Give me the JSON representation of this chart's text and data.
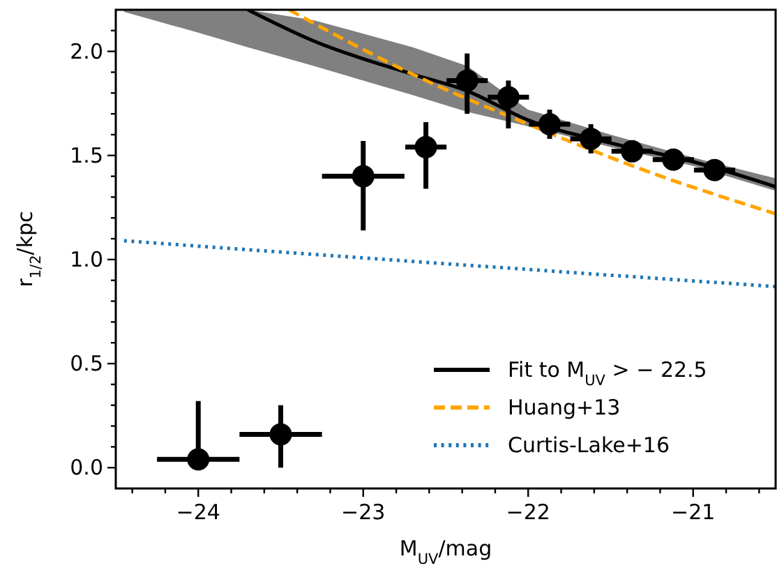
{
  "chart_data": {
    "type": "scatter",
    "xlabel": "M$_{UV}$/mag",
    "ylabel": "r$_{1/2}$/kpc",
    "xlim": [
      -24.5,
      -20.5
    ],
    "ylim": [
      -0.1,
      2.2
    ],
    "xticks": [
      {
        "value": -24.4,
        "label": null
      },
      {
        "value": -24.2,
        "label": null
      },
      {
        "value": -24,
        "label": "−24"
      },
      {
        "value": -23.8,
        "label": null
      },
      {
        "value": -23.6,
        "label": null
      },
      {
        "value": -23.4,
        "label": null
      },
      {
        "value": -23.2,
        "label": null
      },
      {
        "value": -23,
        "label": "−23"
      },
      {
        "value": -22.8,
        "label": null
      },
      {
        "value": -22.6,
        "label": null
      },
      {
        "value": -22.4,
        "label": null
      },
      {
        "value": -22.2,
        "label": null
      },
      {
        "value": -22,
        "label": "−22"
      },
      {
        "value": -21.8,
        "label": null
      },
      {
        "value": -21.6,
        "label": null
      },
      {
        "value": -21.4,
        "label": null
      },
      {
        "value": -21.2,
        "label": null
      },
      {
        "value": -21,
        "label": "−21"
      },
      {
        "value": -20.8,
        "label": null
      },
      {
        "value": -20.6,
        "label": null
      }
    ],
    "yticks": [
      {
        "value": 0,
        "label": "0.0"
      },
      {
        "value": 0.1,
        "label": null
      },
      {
        "value": 0.2,
        "label": null
      },
      {
        "value": 0.3,
        "label": null
      },
      {
        "value": 0.4,
        "label": null
      },
      {
        "value": 0.5,
        "label": "0.5"
      },
      {
        "value": 0.6,
        "label": null
      },
      {
        "value": 0.7,
        "label": null
      },
      {
        "value": 0.8,
        "label": null
      },
      {
        "value": 0.9,
        "label": null
      },
      {
        "value": 1,
        "label": "1.0"
      },
      {
        "value": 1.1,
        "label": null
      },
      {
        "value": 1.2,
        "label": null
      },
      {
        "value": 1.3,
        "label": null
      },
      {
        "value": 1.4,
        "label": null
      },
      {
        "value": 1.5,
        "label": "1.5"
      },
      {
        "value": 1.6,
        "label": null
      },
      {
        "value": 1.7,
        "label": null
      },
      {
        "value": 1.8,
        "label": null
      },
      {
        "value": 1.9,
        "label": null
      },
      {
        "value": 2,
        "label": "2.0"
      },
      {
        "value": 2.1,
        "label": null
      }
    ],
    "grid": false,
    "legend": "bottom right",
    "series": [
      {
        "type": "line",
        "name": "Fit to M$_{UV}$ > − 22.5",
        "color": "#000000",
        "line_style": "solid",
        "marker": "none",
        "x": [
          -24.45,
          -24.0,
          -23.7,
          -23.3,
          -22.7,
          -22.37,
          -22.0,
          -21.5,
          -21.0,
          -20.5
        ],
        "values": [
          null,
          null,
          2.2,
          2.05,
          1.89,
          1.81,
          1.67,
          1.56,
          1.47,
          1.35
        ],
        "lower": [
          2.19,
          2.09,
          2.02,
          1.93,
          1.79,
          1.71,
          1.64,
          1.54,
          1.45,
          1.33
        ],
        "upper": [
          2.2,
          2.2,
          2.2,
          2.15,
          2.02,
          1.93,
          1.72,
          1.6,
          1.49,
          1.39
        ]
      },
      {
        "type": "line",
        "name": "Huang+13",
        "color": "#ffa500",
        "line_style": "dashed",
        "marker": "none",
        "x": [
          -23.45,
          -22.7,
          -22.0,
          -21.3,
          -20.5
        ],
        "values": [
          2.2,
          1.89,
          1.65,
          1.43,
          1.22
        ]
      },
      {
        "type": "line",
        "name": "Curtis-Lake+16",
        "color": "#1f77b4",
        "line_style": "dotted",
        "marker": "none",
        "x": [
          -24.45,
          -22.5,
          -20.5
        ],
        "values": [
          1.09,
          0.98,
          0.87
        ]
      },
      {
        "color": "#000000",
        "marker": "circle",
        "x": [
          -24.0,
          -23.5,
          -23.0,
          -22.62,
          -22.37,
          -22.12,
          -21.87,
          -21.62,
          -21.37,
          -21.12,
          -20.87
        ],
        "values": [
          0.04,
          0.16,
          1.4,
          1.54,
          1.86,
          1.78,
          1.65,
          1.58,
          1.52,
          1.48,
          1.43
        ],
        "errors": [
          [
            0,
            0.32
          ],
          [
            0,
            0.3
          ],
          [
            1.14,
            1.57
          ],
          [
            1.34,
            1.66
          ],
          [
            1.7,
            1.99
          ],
          [
            1.63,
            1.86
          ],
          [
            1.58,
            1.72
          ],
          [
            1.51,
            1.65
          ],
          null,
          null,
          null
        ],
        "xerrors": [
          0.25,
          0.25,
          0.25,
          0.125,
          0.125,
          0.125,
          0.125,
          0.125,
          0.125,
          0.125,
          0.125
        ]
      }
    ]
  }
}
